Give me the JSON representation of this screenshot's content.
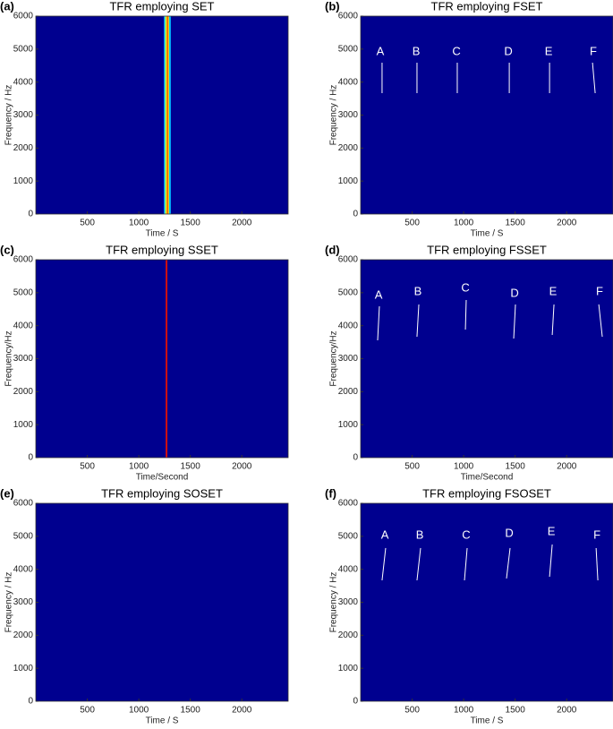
{
  "chart_data": [
    {
      "type": "spectrogram",
      "panel_label": "(a)",
      "title": "TFR employing SET",
      "xlabel": "Time / S",
      "ylabel": "Frequency / Hz",
      "xlim": [
        0,
        2450
      ],
      "ylim": [
        0,
        6000
      ],
      "xticks": [
        500,
        1000,
        1500,
        2000
      ],
      "yticks": [
        0,
        1000,
        2000,
        3000,
        4000,
        5000,
        6000
      ],
      "background": "#00008f",
      "ridges": [
        {
          "x": 1252,
          "color": "#00a0ff"
        },
        {
          "x": 1262,
          "color": "#80ff80"
        },
        {
          "x": 1272,
          "color": "#ffe000"
        },
        {
          "x": 1282,
          "color": "#ff3000"
        },
        {
          "x": 1292,
          "color": "#ffe000"
        },
        {
          "x": 1302,
          "color": "#00c0ff"
        }
      ],
      "annotations": []
    },
    {
      "type": "spectrogram",
      "panel_label": "(b)",
      "title": "TFR employing FSET",
      "xlabel": "Time / S",
      "ylabel": "Frequency / Hz",
      "xlim": [
        0,
        2450
      ],
      "ylim": [
        0,
        6000
      ],
      "xticks": [
        500,
        1000,
        1500,
        2000
      ],
      "yticks": [
        0,
        1000,
        2000,
        3000,
        4000,
        5000,
        6000
      ],
      "background": "#00008f",
      "ridges": [],
      "annotations": [
        {
          "text": "A",
          "x": 191,
          "y": 4914,
          "x1": 208,
          "y1": 4588,
          "x2": 208,
          "y2": 3665
        },
        {
          "text": "B",
          "x": 539,
          "y": 4914,
          "x1": 547,
          "y1": 4588,
          "x2": 547,
          "y2": 3665
        },
        {
          "text": "C",
          "x": 930,
          "y": 4914,
          "x1": 938,
          "y1": 4588,
          "x2": 938,
          "y2": 3665
        },
        {
          "text": "D",
          "x": 1434,
          "y": 4914,
          "x1": 1443,
          "y1": 4588,
          "x2": 1443,
          "y2": 3665
        },
        {
          "text": "E",
          "x": 1825,
          "y": 4914,
          "x1": 1834,
          "y1": 4588,
          "x2": 1834,
          "y2": 3665
        },
        {
          "text": "F",
          "x": 2259,
          "y": 4914,
          "x1": 2251,
          "y1": 4588,
          "x2": 2277,
          "y2": 3665
        }
      ]
    },
    {
      "type": "spectrogram",
      "panel_label": "(c)",
      "title": "TFR employing SSET",
      "xlabel": "Time/Second",
      "ylabel": "Frequency/Hz",
      "xlim": [
        0,
        2450
      ],
      "ylim": [
        0,
        6000
      ],
      "xticks": [
        500,
        1000,
        1500,
        2000
      ],
      "yticks": [
        0,
        1000,
        2000,
        3000,
        4000,
        5000,
        6000
      ],
      "background": "#00008f",
      "ridges": [
        {
          "x": 1269,
          "color": "#d01010"
        }
      ],
      "annotations": []
    },
    {
      "type": "spectrogram",
      "panel_label": "(d)",
      "title": "TFR employing FSSET",
      "xlabel": "Time/Second",
      "ylabel": "Frequency/Hz",
      "xlim": [
        0,
        2450
      ],
      "ylim": [
        0,
        6000
      ],
      "xticks": [
        500,
        1000,
        1500,
        2000
      ],
      "yticks": [
        0,
        1000,
        2000,
        3000,
        4000,
        5000,
        6000
      ],
      "background": "#00008f",
      "ridges": [],
      "annotations": [
        {
          "text": "A",
          "x": 174,
          "y": 4914,
          "x1": 182,
          "y1": 4588,
          "x2": 165,
          "y2": 3557
        },
        {
          "text": "B",
          "x": 556,
          "y": 5023,
          "x1": 565,
          "y1": 4643,
          "x2": 547,
          "y2": 3665
        },
        {
          "text": "C",
          "x": 1017,
          "y": 5131,
          "x1": 1025,
          "y1": 4778,
          "x2": 1017,
          "y2": 3882
        },
        {
          "text": "D",
          "x": 1495,
          "y": 4968,
          "x1": 1503,
          "y1": 4643,
          "x2": 1486,
          "y2": 3611
        },
        {
          "text": "E",
          "x": 1868,
          "y": 5023,
          "x1": 1877,
          "y1": 4643,
          "x2": 1860,
          "y2": 3720
        },
        {
          "text": "F",
          "x": 2320,
          "y": 5023,
          "x1": 2312,
          "y1": 4643,
          "x2": 2346,
          "y2": 3665
        }
      ]
    },
    {
      "type": "spectrogram",
      "panel_label": "(e)",
      "title": "TFR employing SOSET",
      "xlabel": "Time / S",
      "ylabel": "Frequency / Hz",
      "xlim": [
        0,
        2450
      ],
      "ylim": [
        0,
        6000
      ],
      "xticks": [
        500,
        1000,
        1500,
        2000
      ],
      "yticks": [
        0,
        1000,
        2000,
        3000,
        4000,
        5000,
        6000
      ],
      "background": "#00008f",
      "ridges": [],
      "annotations": []
    },
    {
      "type": "spectrogram",
      "panel_label": "(f)",
      "title": "TFR employing FSOSET",
      "xlabel": "Time / S",
      "ylabel": "Frequency / Hz",
      "xlim": [
        0,
        2450
      ],
      "ylim": [
        0,
        6000
      ],
      "xticks": [
        500,
        1000,
        1500,
        2000
      ],
      "yticks": [
        0,
        1000,
        2000,
        3000,
        4000,
        5000,
        6000
      ],
      "background": "#00008f",
      "ridges": [],
      "annotations": [
        {
          "text": "A",
          "x": 235,
          "y": 5023,
          "x1": 243,
          "y1": 4643,
          "x2": 208,
          "y2": 3665
        },
        {
          "text": "B",
          "x": 574,
          "y": 5023,
          "x1": 582,
          "y1": 4643,
          "x2": 547,
          "y2": 3665
        },
        {
          "text": "C",
          "x": 1025,
          "y": 5023,
          "x1": 1034,
          "y1": 4643,
          "x2": 1008,
          "y2": 3665
        },
        {
          "text": "D",
          "x": 1443,
          "y": 5077,
          "x1": 1451,
          "y1": 4643,
          "x2": 1416,
          "y2": 3720
        },
        {
          "text": "E",
          "x": 1851,
          "y": 5131,
          "x1": 1860,
          "y1": 4751,
          "x2": 1834,
          "y2": 3774
        },
        {
          "text": "F",
          "x": 2294,
          "y": 5023,
          "x1": 2286,
          "y1": 4643,
          "x2": 2303,
          "y2": 3665
        }
      ]
    }
  ]
}
